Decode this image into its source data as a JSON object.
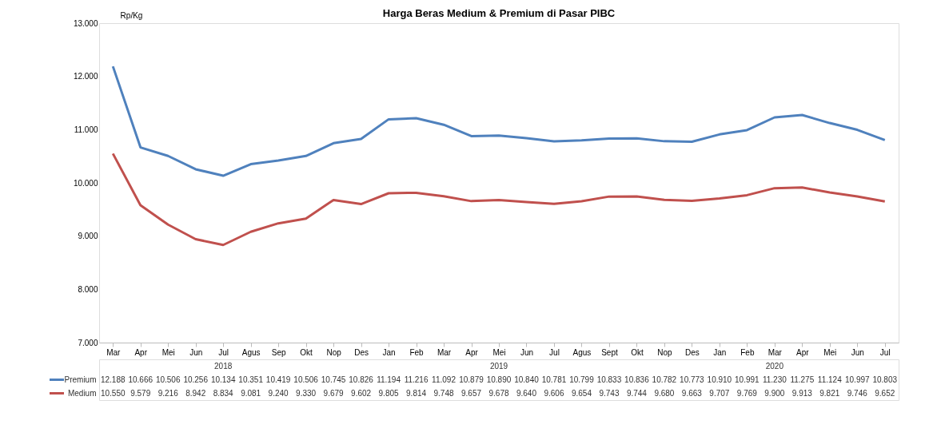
{
  "chart_data": {
    "type": "line",
    "title": "Harga Beras Medium & Premium di Pasar PIBC",
    "ylabel": "Rp/Kg",
    "categories": [
      "Mar",
      "Apr",
      "Mei",
      "Jun",
      "Jul",
      "Agus",
      "Sep",
      "Okt",
      "Nop",
      "Des",
      "Jan",
      "Feb",
      "Mar",
      "Apr",
      "Mei",
      "Jun",
      "Jul",
      "Agus",
      "Sept",
      "Okt",
      "Nop",
      "Des",
      "Jan",
      "Feb",
      "Mar",
      "Apr",
      "Mei",
      "Jun",
      "Jul"
    ],
    "series": [
      {
        "name": "Premium",
        "color": "#4f81bd",
        "values": [
          12188,
          10666,
          10506,
          10256,
          10134,
          10351,
          10419,
          10506,
          10745,
          10826,
          11194,
          11216,
          11092,
          10879,
          10890,
          10840,
          10781,
          10799,
          10833,
          10836,
          10782,
          10773,
          10910,
          10991,
          11230,
          11275,
          11124,
          10997,
          10803
        ],
        "value_labels": [
          "12.188",
          "10.666",
          "10.506",
          "10.256",
          "10.134",
          "10.351",
          "10.419",
          "10.506",
          "10.745",
          "10.826",
          "11.194",
          "11.216",
          "11.092",
          "10.879",
          "10.890",
          "10.840",
          "10.781",
          "10.799",
          "10.833",
          "10.836",
          "10.782",
          "10.773",
          "10.910",
          "10.991",
          "11.230",
          "11.275",
          "11.124",
          "10.997",
          "10.803"
        ]
      },
      {
        "name": "Medium",
        "color": "#c0504d",
        "values": [
          10550,
          9579,
          9216,
          8942,
          8834,
          9081,
          9240,
          9330,
          9679,
          9602,
          9805,
          9814,
          9748,
          9657,
          9678,
          9640,
          9606,
          9654,
          9743,
          9744,
          9680,
          9663,
          9707,
          9769,
          9900,
          9913,
          9821,
          9746,
          9652
        ],
        "value_labels": [
          "10.550",
          "9.579",
          "9.216",
          "8.942",
          "8.834",
          "9.081",
          "9.240",
          "9.330",
          "9.679",
          "9.602",
          "9.805",
          "9.814",
          "9.748",
          "9.657",
          "9.678",
          "9.640",
          "9.606",
          "9.654",
          "9.743",
          "9.744",
          "9.680",
          "9.663",
          "9.707",
          "9.769",
          "9.900",
          "9.913",
          "9.821",
          "9.746",
          "9.652"
        ]
      }
    ],
    "annotations": [
      "2018",
      "2019",
      "2020"
    ],
    "ylim": [
      7000,
      13000
    ],
    "yticks": [
      {
        "value": 7000,
        "label": "7.000"
      },
      {
        "value": 8000,
        "label": "8.000"
      },
      {
        "value": 9000,
        "label": "9.000"
      },
      {
        "value": 10000,
        "label": "10.000"
      },
      {
        "value": 11000,
        "label": "11.000"
      },
      {
        "value": 12000,
        "label": "12.000"
      },
      {
        "value": 13000,
        "label": "13.000"
      }
    ],
    "legend": "bottom",
    "grid": false,
    "marker": "none",
    "line_style": "solid"
  }
}
